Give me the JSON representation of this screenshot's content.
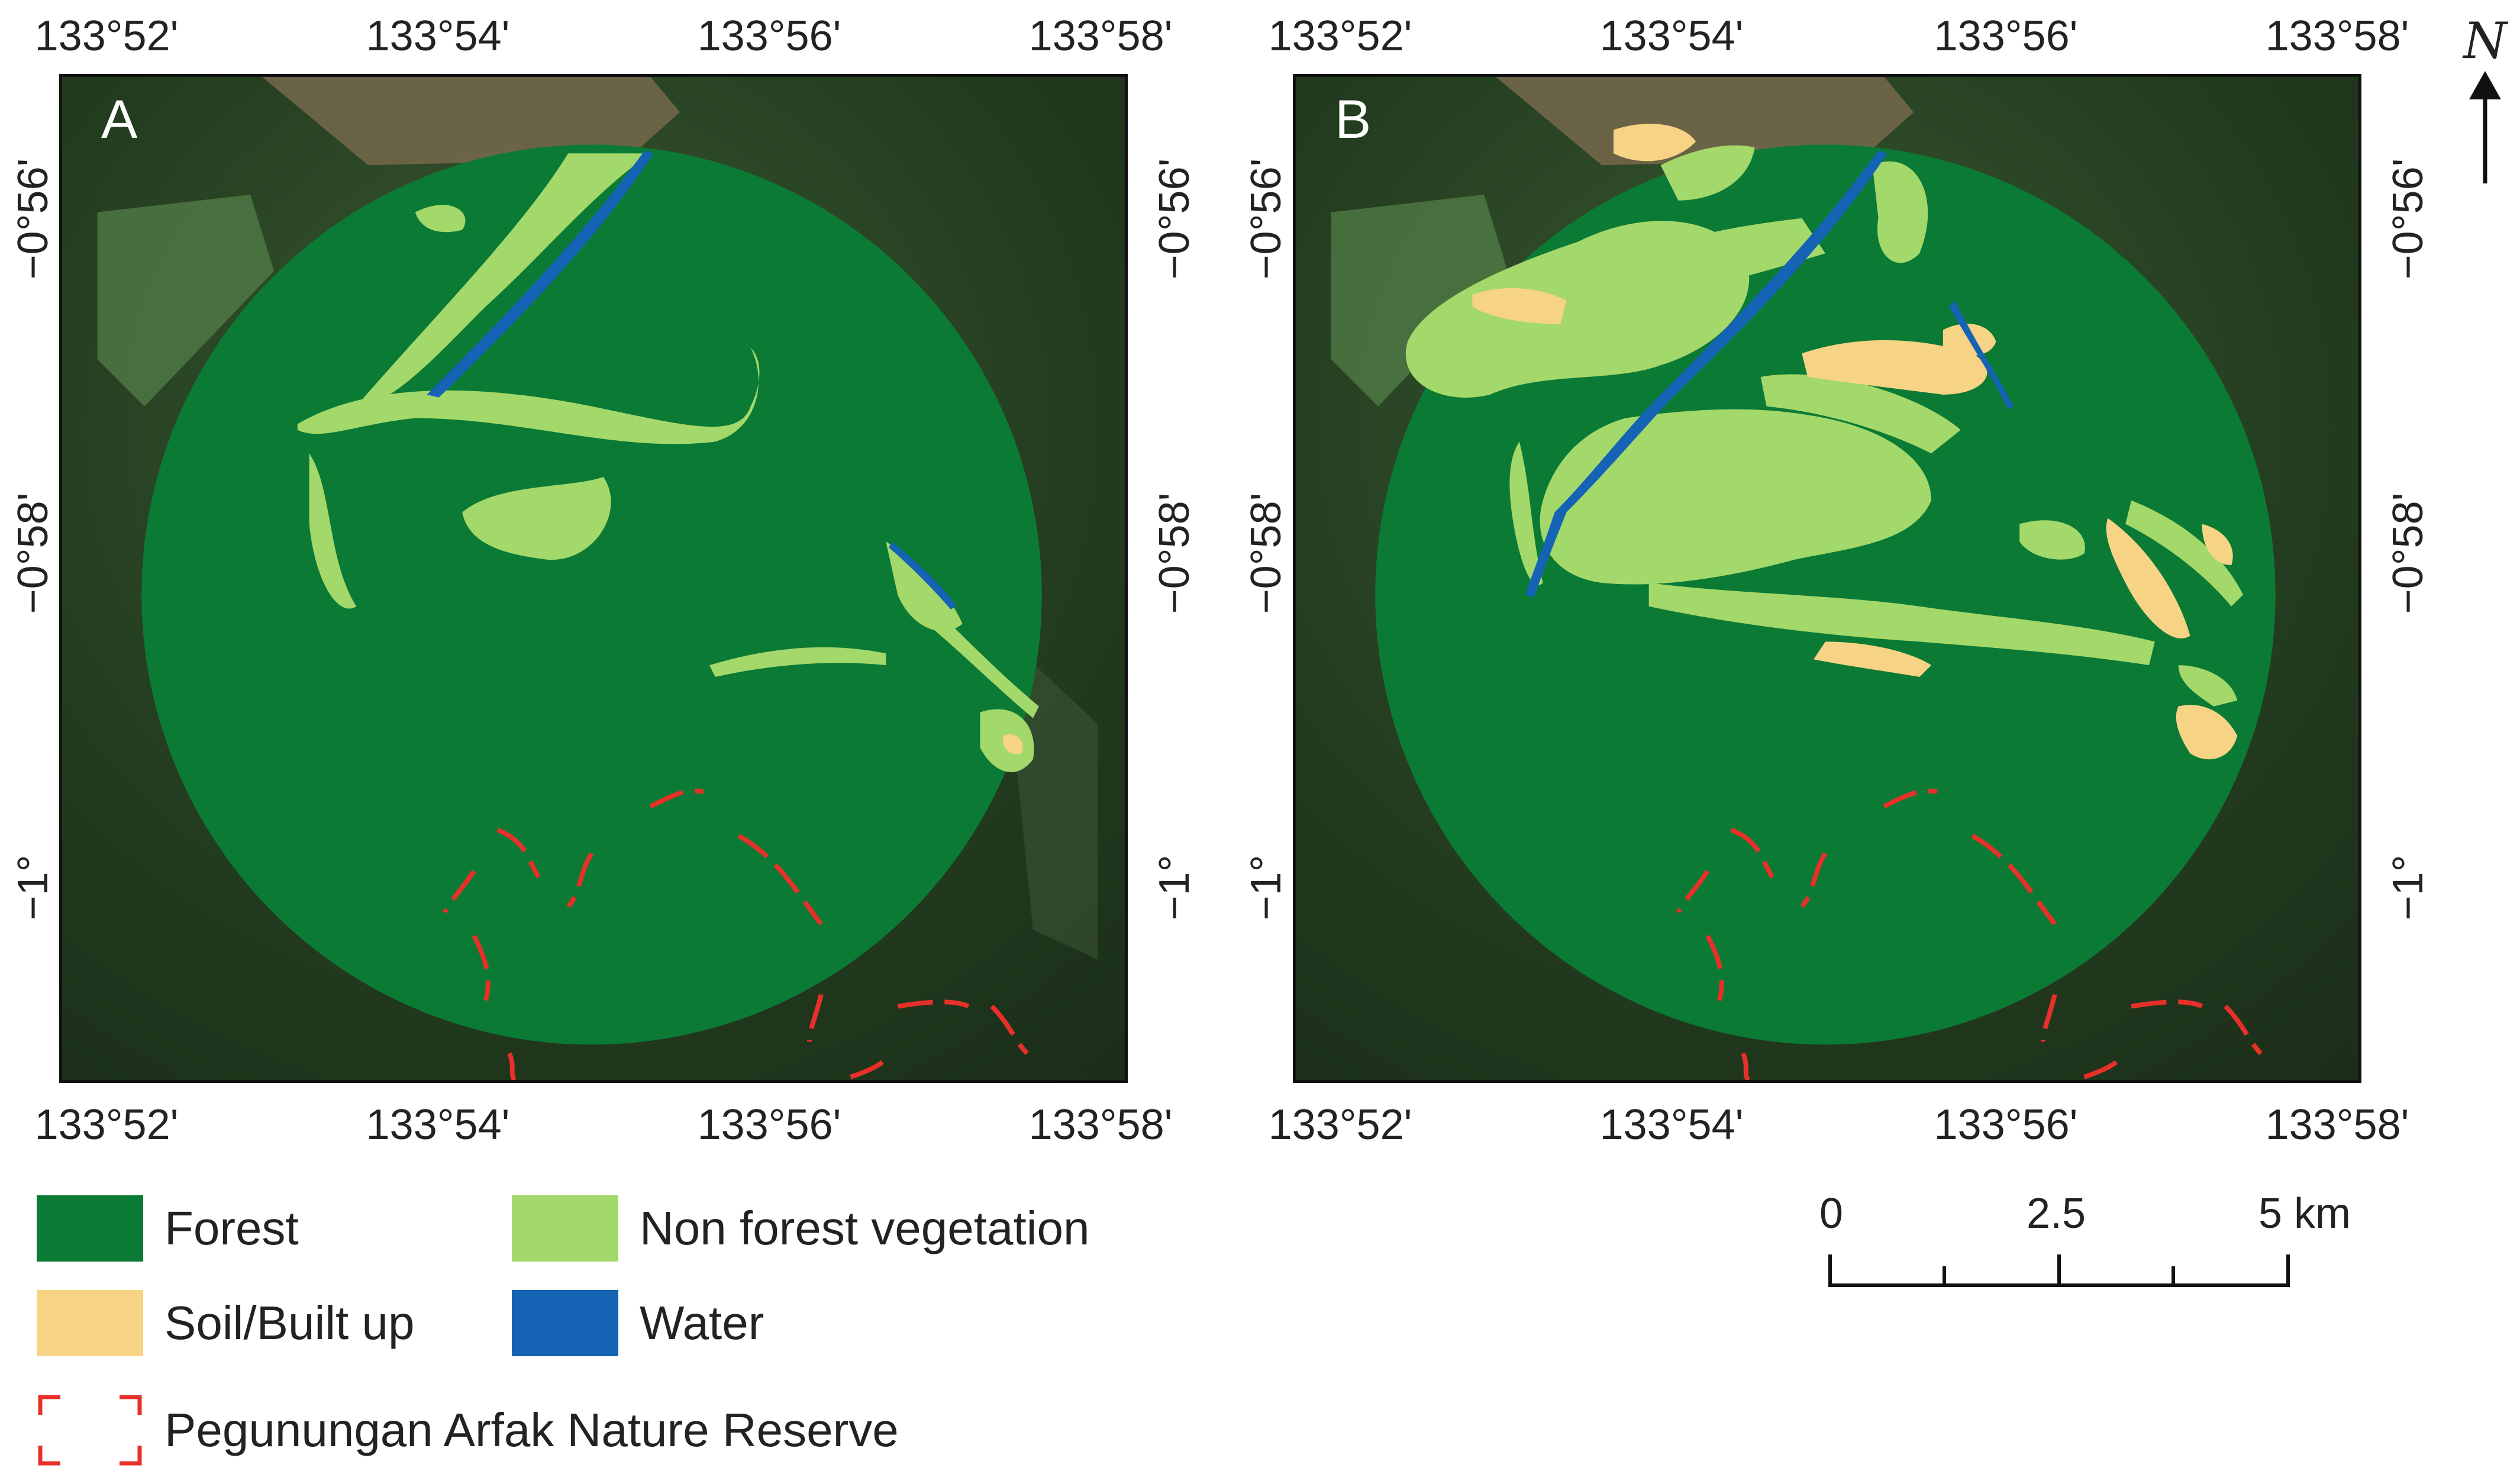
{
  "panels": [
    {
      "letter": "A",
      "top_ticks": [
        "133°52'",
        "133°54'",
        "133°56'",
        "133°58'"
      ],
      "bottom_ticks": [
        "133°52'",
        "133°54'",
        "133°56'",
        "133°58'"
      ],
      "left_ticks": [
        "−0°56'",
        "−0°58'",
        "−1°"
      ],
      "right_ticks": [
        "−0°56'",
        "−0°58'",
        "−1°"
      ]
    },
    {
      "letter": "B",
      "top_ticks": [
        "133°52'",
        "133°54'",
        "133°56'",
        "133°58'"
      ],
      "bottom_ticks": [
        "133°52'",
        "133°54'",
        "133°56'",
        "133°58'"
      ],
      "left_ticks": [
        "−0°56'",
        "−0°58'",
        "−1°"
      ],
      "right_ticks": [
        "−0°56'",
        "−0°58'",
        "−1°"
      ]
    }
  ],
  "north_arrow": {
    "label": "N"
  },
  "legend": {
    "items": [
      {
        "label": "Forest",
        "color": "#0b7a35"
      },
      {
        "label": "Non forest vegetation",
        "color": "#a3d86b"
      },
      {
        "label": "Soil/Built up",
        "color": "#f7d385"
      },
      {
        "label": "Water",
        "color": "#1563b5"
      }
    ],
    "reserve": {
      "label": "Pegunungan Arfak Nature Reserve",
      "color": "#e8302a"
    }
  },
  "scale_bar": {
    "labels": [
      "0",
      "2.5",
      "5 km"
    ]
  },
  "colors": {
    "forest": "#0b7a35",
    "non_forest_vegetation": "#a3d86b",
    "soil_built_up": "#f7d385",
    "water": "#1563b5",
    "reserve_boundary": "#e8302a",
    "background_imagery": "#263f22"
  }
}
